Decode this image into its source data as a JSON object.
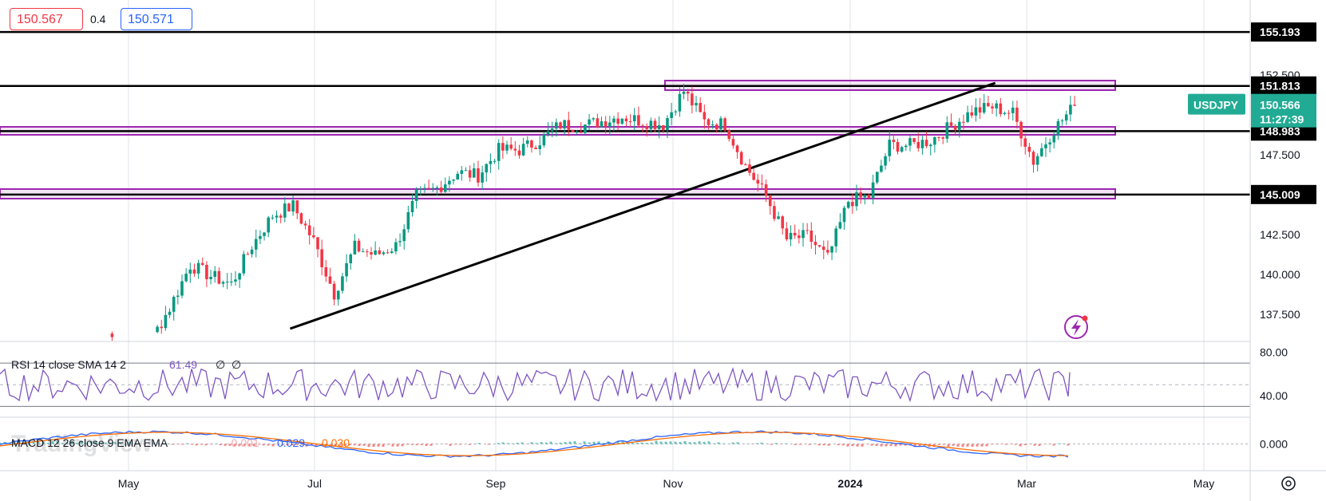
{
  "header": {
    "bid": "150.567",
    "spread": "0.4",
    "ask": "150.571"
  },
  "price_axis": {
    "ticks": [
      "152.500",
      "147.500",
      "142.500",
      "140.000",
      "137.500"
    ],
    "horizontal_levels": [
      "155.193",
      "151.813",
      "148.983",
      "145.009"
    ],
    "symbol": "USDJPY",
    "last_price": "150.566",
    "countdown": "11:27:39"
  },
  "rsi_panel": {
    "label": "RSI 14 close SMA 14 2",
    "value": "61.49",
    "extra1": "∅",
    "extra2": "∅",
    "ticks": [
      "80.00",
      "40.00"
    ]
  },
  "macd_panel": {
    "label": "MACD 12 26 close 9 EMA EMA",
    "histogram": "-0.001",
    "macd": "0.029",
    "signal": "0.030",
    "tick": "0.000"
  },
  "time_axis": {
    "labels": [
      "May",
      "Jul",
      "Sep",
      "Nov",
      "2024",
      "Mar",
      "May"
    ]
  },
  "watermark": "TradingView",
  "colors": {
    "up": "#089981",
    "down": "#f23645",
    "zone": "#9c27b0",
    "rsi": "#7e57c2",
    "macd": "#2962ff",
    "signal": "#ff6d00",
    "last_price_bg": "#22ab94"
  },
  "chart_data": [
    {
      "type": "candlestick",
      "symbol": "USDJPY",
      "y_range": [
        135.8,
        157.2
      ],
      "horizontal_lines": [
        155.193,
        151.813,
        148.983,
        145.009
      ],
      "zones": [
        [
          151.55,
          152.15
        ],
        [
          148.75,
          149.25
        ],
        [
          144.75,
          145.35
        ]
      ],
      "trendline": [
        [
          "2023-06-25",
          136.6
        ],
        [
          "2024-02-20",
          152.0
        ]
      ],
      "x_range": [
        "2023-03-20",
        "2024-05-31"
      ],
      "weekly_close": [
        [
          "2023-04-24",
          136.3
        ],
        [
          "2023-05-01",
          134.9
        ],
        [
          "2023-05-08",
          135.7
        ],
        [
          "2023-05-15",
          137.9
        ],
        [
          "2023-05-22",
          140.6
        ],
        [
          "2023-05-29",
          139.9
        ],
        [
          "2023-06-05",
          139.4
        ],
        [
          "2023-06-12",
          141.8
        ],
        [
          "2023-06-19",
          143.7
        ],
        [
          "2023-06-26",
          144.3
        ],
        [
          "2023-07-03",
          142.1
        ],
        [
          "2023-07-10",
          138.8
        ],
        [
          "2023-07-17",
          141.7
        ],
        [
          "2023-07-24",
          141.2
        ],
        [
          "2023-07-31",
          141.8
        ],
        [
          "2023-08-07",
          144.9
        ],
        [
          "2023-08-14",
          145.4
        ],
        [
          "2023-08-21",
          146.4
        ],
        [
          "2023-08-28",
          146.2
        ],
        [
          "2023-09-04",
          147.8
        ],
        [
          "2023-09-11",
          147.8
        ],
        [
          "2023-09-18",
          148.4
        ],
        [
          "2023-09-25",
          149.4
        ],
        [
          "2023-10-02",
          149.3
        ],
        [
          "2023-10-09",
          149.6
        ],
        [
          "2023-10-16",
          149.9
        ],
        [
          "2023-10-23",
          149.6
        ],
        [
          "2023-10-30",
          149.4
        ],
        [
          "2023-11-06",
          151.5
        ],
        [
          "2023-11-13",
          149.6
        ],
        [
          "2023-11-20",
          149.4
        ],
        [
          "2023-11-27",
          146.8
        ],
        [
          "2023-12-04",
          144.9
        ],
        [
          "2023-12-11",
          142.2
        ],
        [
          "2023-12-18",
          142.4
        ],
        [
          "2023-12-25",
          141.0
        ],
        [
          "2024-01-01",
          144.6
        ],
        [
          "2024-01-08",
          144.9
        ],
        [
          "2024-01-15",
          148.1
        ],
        [
          "2024-01-22",
          148.1
        ],
        [
          "2024-01-29",
          148.4
        ],
        [
          "2024-02-05",
          149.3
        ],
        [
          "2024-02-12",
          150.2
        ],
        [
          "2024-02-19",
          150.5
        ],
        [
          "2024-02-26",
          150.1
        ],
        [
          "2024-03-04",
          147.1
        ],
        [
          "2024-03-11",
          149.1
        ],
        [
          "2024-03-18",
          150.566
        ]
      ]
    },
    {
      "type": "line",
      "name": "RSI",
      "y_range": [
        20,
        90
      ],
      "guides": [
        70,
        50,
        30
      ],
      "last": 61.49
    },
    {
      "type": "bar",
      "name": "MACD",
      "y_range": [
        -1.1,
        1.1
      ],
      "macd_last": 0.029,
      "signal_last": 0.03,
      "histogram_last": -0.001
    }
  ]
}
